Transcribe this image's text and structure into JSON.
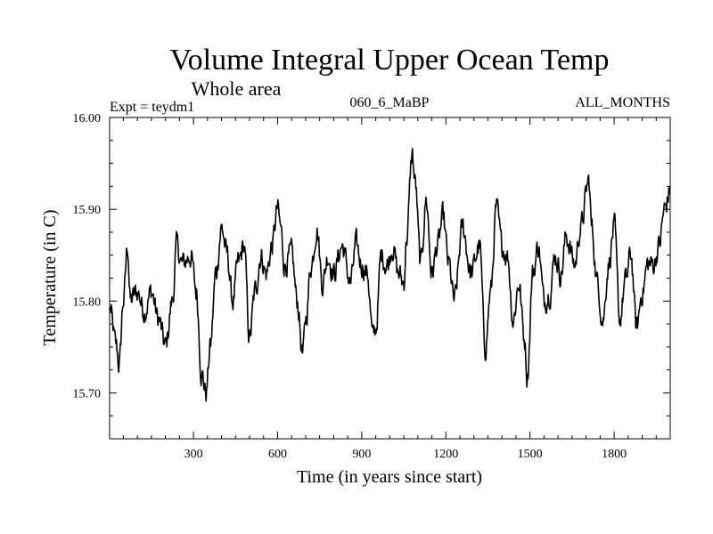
{
  "chart_data": {
    "type": "line",
    "title": "Volume Integral Upper Ocean Temp",
    "subtitle": "Whole area",
    "experiment": "Expt = teydm1",
    "run": "060_6_MaBP",
    "period": "ALL_MONTHS",
    "xlabel": "Time (in years since start)",
    "ylabel": "Temperature (in C)",
    "xlim": [
      1,
      2000
    ],
    "ylim": [
      15.65,
      16.0
    ],
    "x_ticks": [
      300,
      600,
      900,
      1200,
      1500,
      1800
    ],
    "y_ticks": [
      15.7,
      15.8,
      15.9,
      16.0
    ],
    "x_tick_labels": [
      "300",
      "600",
      "900",
      "1200",
      "1500",
      "1800"
    ],
    "y_tick_labels": [
      "15.70",
      "15.80",
      "15.90",
      "16.00"
    ],
    "grid": false,
    "series": [
      {
        "name": "Volume integral upper ocean temperature",
        "color": "#000000",
        "x": [
          1,
          25,
          35,
          50,
          65,
          75,
          100,
          125,
          150,
          175,
          200,
          225,
          240,
          260,
          290,
          310,
          330,
          345,
          360,
          380,
          400,
          420,
          440,
          460,
          480,
          500,
          520,
          540,
          560,
          580,
          600,
          610,
          625,
          650,
          670,
          690,
          700,
          720,
          740,
          760,
          780,
          800,
          830,
          860,
          880,
          900,
          920,
          940,
          950,
          970,
          990,
          1010,
          1030,
          1050,
          1060,
          1080,
          1090,
          1110,
          1130,
          1150,
          1170,
          1190,
          1210,
          1230,
          1260,
          1290,
          1320,
          1340,
          1360,
          1380,
          1400,
          1420,
          1440,
          1460,
          1480,
          1490,
          1510,
          1530,
          1550,
          1570,
          1590,
          1610,
          1630,
          1660,
          1680,
          1710,
          1720,
          1740,
          1760,
          1780,
          1800,
          1820,
          1840,
          1860,
          1880,
          1900,
          1920,
          1940,
          1960,
          1980,
          2000
        ],
        "y": [
          15.79,
          15.75,
          15.73,
          15.8,
          15.86,
          15.8,
          15.81,
          15.79,
          15.81,
          15.78,
          15.75,
          15.8,
          15.86,
          15.84,
          15.85,
          15.81,
          15.72,
          15.7,
          15.75,
          15.83,
          15.88,
          15.85,
          15.8,
          15.84,
          15.86,
          15.76,
          15.81,
          15.85,
          15.83,
          15.86,
          15.9,
          15.88,
          15.84,
          15.85,
          15.8,
          15.74,
          15.78,
          15.84,
          15.88,
          15.82,
          15.85,
          15.83,
          15.86,
          15.82,
          15.86,
          15.84,
          15.83,
          15.76,
          15.77,
          15.85,
          15.84,
          15.86,
          15.83,
          15.82,
          15.87,
          15.96,
          15.93,
          15.84,
          15.91,
          15.83,
          15.86,
          15.89,
          15.84,
          15.8,
          15.88,
          15.83,
          15.86,
          15.75,
          15.81,
          15.9,
          15.86,
          15.85,
          15.78,
          15.82,
          15.76,
          15.72,
          15.83,
          15.86,
          15.8,
          15.81,
          15.85,
          15.83,
          15.87,
          15.84,
          15.88,
          15.93,
          15.88,
          15.82,
          15.78,
          15.84,
          15.88,
          15.78,
          15.82,
          15.85,
          15.77,
          15.81,
          15.84,
          15.84,
          15.86,
          15.9,
          15.92
        ]
      }
    ]
  }
}
